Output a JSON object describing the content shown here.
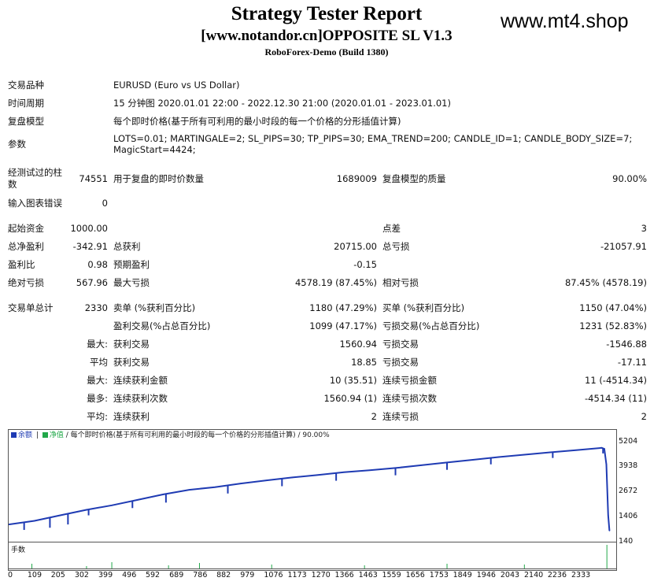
{
  "header": {
    "title": "Strategy Tester Report",
    "subtitle": "[www.notandor.cn]OPPOSITE SL V1.3",
    "build": "RoboForex-Demo (Build 1380)",
    "site": "www.mt4.shop"
  },
  "info": {
    "symbol_label": "交易品种",
    "symbol_value": "EURUSD (Euro vs US Dollar)",
    "period_label": "时间周期",
    "period_value": "15 分钟图 2020.01.01 22:00 - 2022.12.30 21:00 (2020.01.01 - 2023.01.01)",
    "model_label": "复盘模型",
    "model_value": "每个即时价格(基于所有可利用的最小时段的每一个价格的分形插值计算)",
    "params_label": "参数",
    "params_value_1": "LOTS=0.01; MARTINGALE=2; SL_PIPS=30; TP_PIPS=30; EMA_TREND=200; CANDLE_ID=1; CANDLE_BODY_SIZE=7;",
    "params_value_2": "MagicStart=4424;"
  },
  "bars": {
    "tested_label_1": "经测试过的柱",
    "tested_label_2": "数",
    "tested_value": "74551",
    "ticks_label": "用于复盘的即时价数量",
    "ticks_value": "1689009",
    "quality_label": "复盘模型的质量",
    "quality_value": "90.00%",
    "errors_label": "输入图表错误",
    "errors_value": "0"
  },
  "stats": [
    {
      "a_label": "起始资金",
      "a_value": "1000.00",
      "b_label": "",
      "b_value": "",
      "c_label": "点差",
      "c_value": "3"
    },
    {
      "a_label": "总净盈利",
      "a_value": "-342.91",
      "b_label": "总获利",
      "b_value": "20715.00",
      "c_label": "总亏损",
      "c_value": "-21057.91"
    },
    {
      "a_label": "盈利比",
      "a_value": "0.98",
      "b_label": "预期盈利",
      "b_value": "-0.15",
      "c_label": "",
      "c_value": ""
    },
    {
      "a_label": "绝对亏损",
      "a_value": "567.96",
      "b_label": "最大亏损",
      "b_value": "4578.19 (87.45%)",
      "c_label": "相对亏损",
      "c_value": "87.45% (4578.19)"
    }
  ],
  "trades": [
    {
      "a_label": "交易单总计",
      "a_value": "2330",
      "b_label": "卖单 (%获利百分比)",
      "b_value": "1180 (47.29%)",
      "c_label": "买单 (%获利百分比)",
      "c_value": "1150 (47.04%)"
    },
    {
      "a_label": "",
      "a_value": "",
      "b_label": "盈利交易(%占总百分比)",
      "b_value": "1099 (47.17%)",
      "c_label": "亏损交易(%占总百分比)",
      "c_value": "1231 (52.83%)"
    },
    {
      "a_label": "",
      "a_value": "最大:",
      "b_label": "获利交易",
      "b_value": "1560.94",
      "c_label": "亏损交易",
      "c_value": "-1546.88"
    },
    {
      "a_label": "",
      "a_value": "平均",
      "b_label": "获利交易",
      "b_value": "18.85",
      "c_label": "亏损交易",
      "c_value": "-17.11"
    },
    {
      "a_label": "",
      "a_value": "最大:",
      "b_label": "连续获利金额",
      "b_value": "10 (35.51)",
      "c_label": "连续亏损金额",
      "c_value": "11 (-4514.34)"
    },
    {
      "a_label": "",
      "a_value": "最多:",
      "b_label": "连续获利次数",
      "b_value": "1560.94 (1)",
      "c_label": "连续亏损次数",
      "c_value": "-4514.34 (11)"
    },
    {
      "a_label": "",
      "a_value": "平均:",
      "b_label": "连续获利",
      "b_value": "2",
      "c_label": "连续亏损",
      "c_value": "2"
    }
  ],
  "chart_header": {
    "balance_label": "余额",
    "equity_label": "净值",
    "model_text": "/ 每个即时价格(基于所有可利用的最小时段的每一个价格的分形插值计算) / 90.00%",
    "lots_label": "手数"
  },
  "chart_data": {
    "type": "line",
    "title": "",
    "xlabel": "",
    "ylabel": "",
    "x_ticks": [
      0,
      109,
      205,
      302,
      399,
      496,
      592,
      689,
      786,
      882,
      979,
      1076,
      1173,
      1270,
      1366,
      1463,
      1559,
      1656,
      1753,
      1849,
      1946,
      2043,
      2140,
      2236,
      2333
    ],
    "y_ticks": [
      5204,
      3938,
      2672,
      1406,
      140
    ],
    "xlim": [
      0,
      2350
    ],
    "ylim": [
      140,
      5500
    ],
    "series": [
      {
        "name": "余额",
        "color": "#1f3bb3",
        "x": [
          0,
          100,
          200,
          300,
          400,
          500,
          600,
          700,
          800,
          900,
          1000,
          1100,
          1200,
          1300,
          1400,
          1500,
          1600,
          1700,
          1800,
          1900,
          2000,
          2100,
          2200,
          2300,
          2310,
          2318,
          2325,
          2330
        ],
        "y": [
          1000,
          1200,
          1500,
          1800,
          2050,
          2350,
          2650,
          2900,
          3050,
          3250,
          3420,
          3580,
          3720,
          3870,
          3980,
          4100,
          4250,
          4400,
          4550,
          4700,
          4830,
          4960,
          5080,
          5204,
          5150,
          4300,
          1500,
          660
        ]
      }
    ],
    "drawdown_spikes": [
      {
        "x": 60,
        "low": 700
      },
      {
        "x": 160,
        "low": 820
      },
      {
        "x": 230,
        "low": 1000
      },
      {
        "x": 310,
        "low": 1500
      },
      {
        "x": 480,
        "low": 1900
      },
      {
        "x": 610,
        "low": 2200
      },
      {
        "x": 850,
        "low": 2700
      },
      {
        "x": 1060,
        "low": 3100
      },
      {
        "x": 1270,
        "low": 3400
      },
      {
        "x": 1500,
        "low": 3700
      },
      {
        "x": 1700,
        "low": 4000
      },
      {
        "x": 1870,
        "low": 4300
      },
      {
        "x": 2110,
        "low": 4650
      },
      {
        "x": 2305,
        "low": 4900
      }
    ],
    "grid": false
  }
}
